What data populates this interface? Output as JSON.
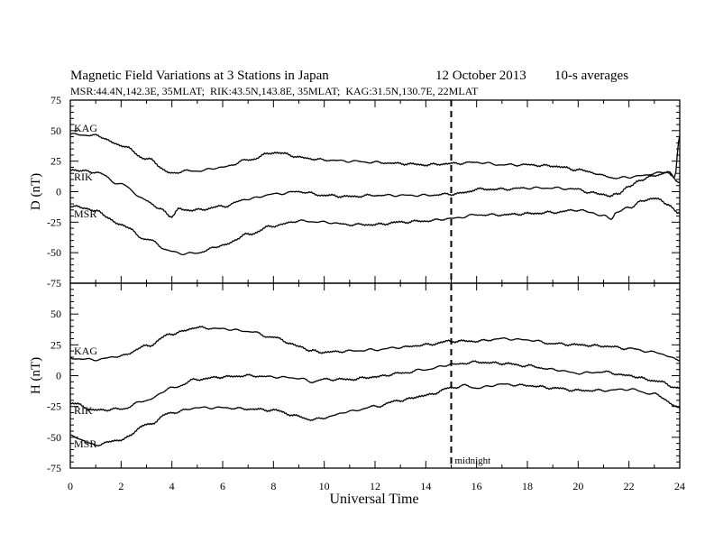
{
  "chart_data": {
    "type": "line",
    "title": "Magnetic Field Variations at 3 Stations in Japan",
    "date": "12 October 2013",
    "averaging": "10-s averages",
    "subtitle": "MSR:44.4N,142.3E, 35MLAT;  RIK:43.5N,143.8E, 35MLAT;  KAG:31.5N,130.7E, 22MLAT",
    "xlabel": "Universal Time",
    "xlim": [
      0,
      24
    ],
    "xticks": [
      "0",
      "2",
      "4",
      "6",
      "8",
      "10",
      "12",
      "14",
      "16",
      "18",
      "20",
      "22",
      "24"
    ],
    "marker": {
      "x": 15,
      "label": "midnight"
    },
    "panels": [
      {
        "ylabel": "D (nT)",
        "ylim": [
          -75,
          75
        ],
        "yticks": [
          "75",
          "50",
          "25",
          "0",
          "-25",
          "-50",
          "-75"
        ],
        "series": [
          {
            "name": "KAG",
            "x": [
              0,
              1,
              2,
              3,
              4,
              4.5,
              5,
              6,
              7,
              8,
              8.5,
              9,
              10,
              11,
              12,
              13,
              14,
              15,
              16,
              17,
              18,
              19,
              20,
              20.5,
              21,
              21.5,
              22,
              22.5,
              23,
              23.5,
              23.8,
              24
            ],
            "y": [
              47,
              46,
              38,
              27,
              15,
              17,
              17,
              20,
              26,
              32,
              31,
              28,
              26,
              25,
              24,
              23,
              22,
              23,
              24,
              22,
              22,
              21,
              18,
              16,
              13,
              11,
              12,
              13,
              15,
              16,
              12,
              45
            ]
          },
          {
            "name": "RIK",
            "x": [
              0,
              1,
              2,
              3,
              3.5,
              4,
              4.3,
              4.5,
              5,
              6,
              7,
              8,
              9,
              10,
              11,
              12,
              13,
              14,
              15,
              15.5,
              16,
              17,
              18,
              19,
              20,
              20.5,
              21,
              21.3,
              21.5,
              22,
              22.5,
              23,
              23.5,
              24
            ],
            "y": [
              18,
              16,
              6,
              -7,
              -14,
              -20,
              -14,
              -15,
              -15,
              -12,
              -6,
              -2,
              0,
              -3,
              -4,
              -3,
              -3,
              -3,
              -2,
              -1,
              2,
              2,
              3,
              3,
              2,
              -1,
              -2,
              -4,
              -2,
              4,
              10,
              13,
              16,
              8
            ]
          },
          {
            "name": "MSR",
            "x": [
              0,
              0.5,
              1,
              2,
              3,
              4,
              4.5,
              5,
              6,
              7,
              8,
              9,
              10,
              11,
              12,
              13,
              14,
              15,
              16,
              17,
              18,
              19,
              20,
              20.5,
              21,
              21.3,
              21.5,
              22,
              22.5,
              23,
              23.5,
              24
            ],
            "y": [
              -12,
              -13,
              -16,
              -27,
              -39,
              -49,
              -51,
              -50,
              -44,
              -35,
              -28,
              -24,
              -25,
              -27,
              -27,
              -25,
              -24,
              -22,
              -19,
              -19,
              -18,
              -17,
              -15,
              -17,
              -20,
              -22,
              -17,
              -13,
              -8,
              -5,
              -10,
              -18
            ]
          }
        ]
      },
      {
        "ylabel": "H (nT)",
        "ylim": [
          -75,
          75
        ],
        "yticks": [
          "75",
          "50",
          "25",
          "0",
          "-25",
          "-50",
          "-75"
        ],
        "series": [
          {
            "name": "KAG",
            "x": [
              0,
              1,
              2,
              3,
              4,
              5,
              6,
              7,
              8,
              9,
              9.5,
              10,
              11,
              12,
              13,
              14,
              15,
              16,
              17,
              18,
              19,
              20,
              21,
              22,
              23,
              24
            ],
            "y": [
              14,
              13,
              16,
              24,
              34,
              39,
              38,
              36,
              31,
              24,
              20,
              19,
              20,
              21,
              23,
              25,
              28,
              28,
              30,
              29,
              26,
              25,
              24,
              22,
              19,
              13
            ]
          },
          {
            "name": "RIK",
            "x": [
              0,
              1,
              2,
              3,
              4,
              5,
              6,
              7,
              8,
              9,
              9.5,
              10,
              11,
              12,
              13,
              14,
              15,
              16,
              17,
              18,
              19,
              20,
              21,
              22,
              23,
              24
            ],
            "y": [
              -22,
              -28,
              -27,
              -20,
              -10,
              -3,
              -1,
              0,
              -1,
              -2,
              -5,
              -3,
              -3,
              -1,
              2,
              5,
              9,
              11,
              10,
              8,
              5,
              2,
              3,
              0,
              -4,
              -10
            ]
          },
          {
            "name": "MSR",
            "x": [
              0,
              1,
              2,
              3,
              4,
              5,
              6,
              7,
              8,
              9,
              9.5,
              10,
              11,
              12,
              13,
              14,
              15,
              15.5,
              16,
              17,
              18,
              19,
              20,
              21,
              22,
              23,
              24
            ],
            "y": [
              -49,
              -56,
              -52,
              -40,
              -30,
              -26,
              -26,
              -27,
              -28,
              -33,
              -36,
              -34,
              -29,
              -25,
              -20,
              -16,
              -10,
              -8,
              -10,
              -7,
              -8,
              -10,
              -12,
              -12,
              -11,
              -15,
              -26
            ]
          }
        ]
      }
    ]
  }
}
